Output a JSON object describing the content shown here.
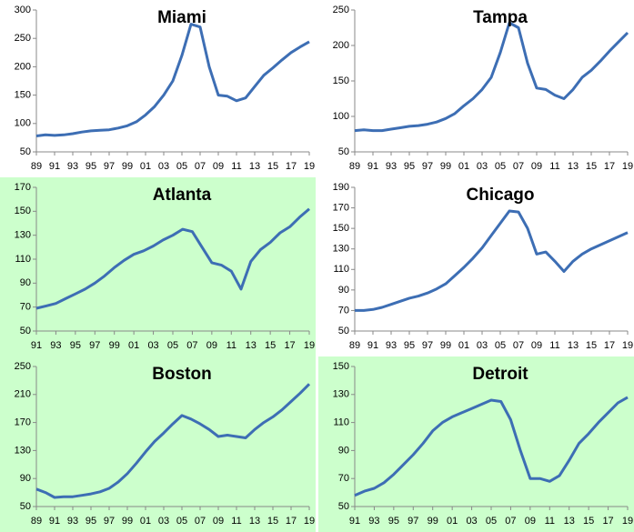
{
  "chart_data": [
    {
      "type": "line",
      "title": "Miami",
      "color": "#3d6eb4",
      "background": "#ffffff",
      "categories": [
        "89",
        null,
        "91",
        null,
        "93",
        null,
        "95",
        null,
        "97",
        null,
        "99",
        null,
        "01",
        null,
        "03",
        null,
        "05",
        null,
        "07",
        null,
        "09",
        null,
        "11",
        null,
        "13",
        null,
        "15",
        null,
        "17",
        null,
        "19"
      ],
      "values": [
        78,
        80,
        79,
        80,
        82,
        85,
        87,
        88,
        89,
        92,
        96,
        103,
        115,
        130,
        150,
        175,
        220,
        275,
        270,
        200,
        150,
        148,
        140,
        145,
        165,
        185,
        198,
        212,
        225,
        235,
        244
      ],
      "ylim": [
        50,
        300
      ],
      "yticks": [
        50,
        100,
        150,
        200,
        250,
        300
      ]
    },
    {
      "type": "line",
      "title": "Tampa",
      "color": "#3d6eb4",
      "background": "#ffffff",
      "categories": [
        "89",
        null,
        "91",
        null,
        "93",
        null,
        "95",
        null,
        "97",
        null,
        "99",
        null,
        "01",
        null,
        "03",
        null,
        "05",
        null,
        "07",
        null,
        "09",
        null,
        "11",
        null,
        "13",
        null,
        "15",
        null,
        "17",
        null,
        "19"
      ],
      "values": [
        80,
        81,
        80,
        80,
        82,
        84,
        86,
        87,
        89,
        92,
        97,
        104,
        115,
        125,
        138,
        155,
        190,
        232,
        225,
        175,
        140,
        138,
        130,
        125,
        138,
        155,
        165,
        178,
        192,
        205,
        218
      ],
      "ylim": [
        50,
        250
      ],
      "yticks": [
        50,
        100,
        150,
        200,
        250
      ]
    },
    {
      "type": "line",
      "title": "Atlanta",
      "color": "#3d6eb4",
      "background": "#ccffcc",
      "categories": [
        "91",
        null,
        "93",
        null,
        "95",
        null,
        "97",
        null,
        "99",
        null,
        "01",
        null,
        "03",
        null,
        "05",
        null,
        "07",
        null,
        "09",
        null,
        "11",
        null,
        "13",
        null,
        "15",
        null,
        "17",
        null,
        "19"
      ],
      "values": [
        69,
        71,
        73,
        77,
        81,
        85,
        90,
        96,
        103,
        109,
        114,
        117,
        121,
        126,
        130,
        135,
        133,
        120,
        107,
        105,
        100,
        85,
        108,
        118,
        124,
        132,
        137,
        145,
        152
      ],
      "ylim": [
        50,
        170
      ],
      "yticks": [
        50,
        70,
        90,
        110,
        130,
        150,
        170
      ]
    },
    {
      "type": "line",
      "title": "Chicago",
      "color": "#3d6eb4",
      "background": "#ffffff",
      "categories": [
        "89",
        null,
        "91",
        null,
        "93",
        null,
        "95",
        null,
        "97",
        null,
        "99",
        null,
        "01",
        null,
        "03",
        null,
        "05",
        null,
        "07",
        null,
        "09",
        null,
        "11",
        null,
        "13",
        null,
        "15",
        null,
        "17",
        null,
        "19"
      ],
      "values": [
        70,
        70,
        71,
        73,
        76,
        79,
        82,
        84,
        87,
        91,
        96,
        104,
        112,
        121,
        131,
        143,
        155,
        167,
        166,
        150,
        125,
        127,
        118,
        108,
        118,
        125,
        130,
        134,
        138,
        142,
        146
      ],
      "ylim": [
        50,
        190
      ],
      "yticks": [
        50,
        70,
        90,
        110,
        130,
        150,
        170,
        190
      ]
    },
    {
      "type": "line",
      "title": "Boston",
      "color": "#3d6eb4",
      "background": "#ccffcc",
      "categories": [
        "89",
        null,
        "91",
        null,
        "93",
        null,
        "95",
        null,
        "97",
        null,
        "99",
        null,
        "01",
        null,
        "03",
        null,
        "05",
        null,
        "07",
        null,
        "09",
        null,
        "11",
        null,
        "13",
        null,
        "15",
        null,
        "17",
        null,
        "19"
      ],
      "values": [
        75,
        70,
        63,
        64,
        64,
        66,
        68,
        71,
        76,
        85,
        97,
        112,
        128,
        143,
        155,
        168,
        180,
        175,
        168,
        160,
        150,
        152,
        150,
        148,
        160,
        170,
        178,
        188,
        200,
        212,
        225
      ],
      "ylim": [
        50,
        250
      ],
      "yticks": [
        50,
        90,
        130,
        170,
        210,
        250
      ]
    },
    {
      "type": "line",
      "title": "Detroit",
      "color": "#3d6eb4",
      "background": "#ccffcc",
      "categories": [
        "91",
        null,
        "93",
        null,
        "95",
        null,
        "97",
        null,
        "99",
        null,
        "01",
        null,
        "03",
        null,
        "05",
        null,
        "07",
        null,
        "09",
        null,
        "11",
        null,
        "13",
        null,
        "15",
        null,
        "17",
        null,
        "19"
      ],
      "values": [
        58,
        61,
        63,
        67,
        73,
        80,
        87,
        95,
        104,
        110,
        114,
        117,
        120,
        123,
        126,
        125,
        112,
        90,
        70,
        70,
        68,
        72,
        83,
        95,
        102,
        110,
        117,
        124,
        128
      ],
      "ylim": [
        50,
        150
      ],
      "yticks": [
        50,
        70,
        90,
        110,
        130,
        150
      ]
    }
  ]
}
